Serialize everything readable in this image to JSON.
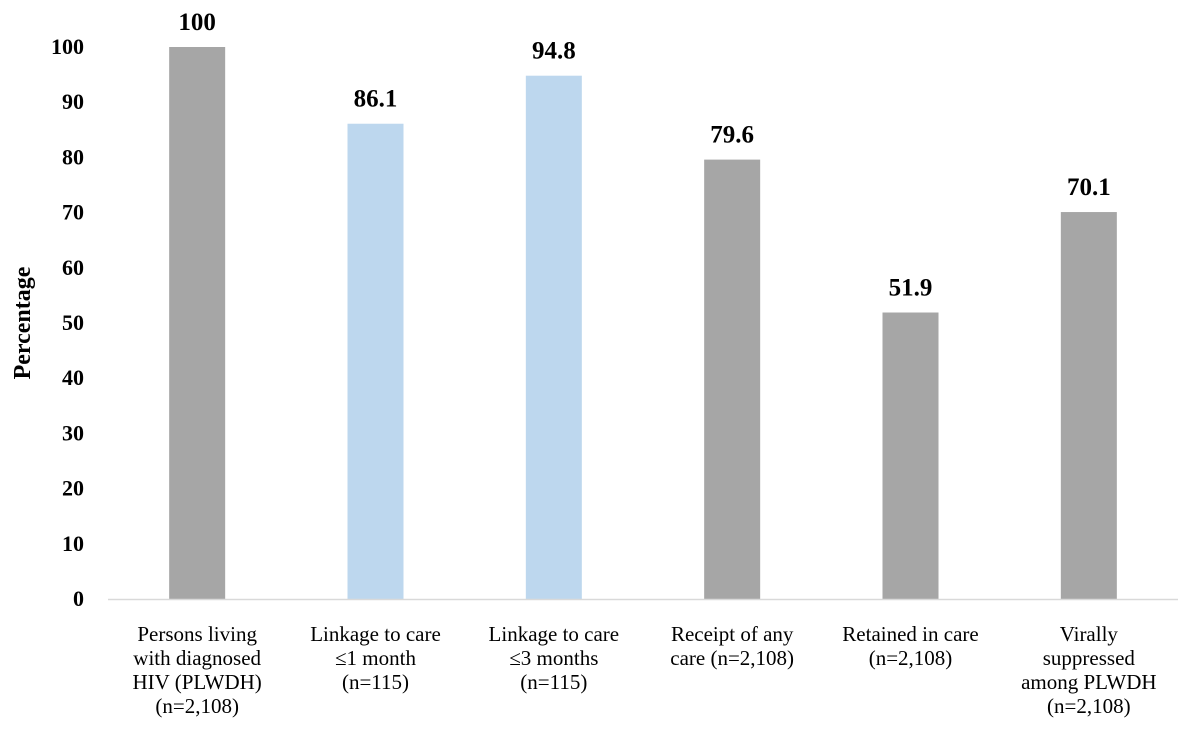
{
  "chart_data": {
    "type": "bar",
    "ylabel": "Percentage",
    "ylim": [
      0,
      100
    ],
    "yticks": [
      0,
      10,
      20,
      30,
      40,
      50,
      60,
      70,
      80,
      90,
      100
    ],
    "grid": false,
    "legend": "none",
    "categories": [
      {
        "lines": [
          "Persons living",
          "with diagnosed",
          "HIV (PLWDH)",
          "(n=2,108)"
        ],
        "value": 100,
        "label": "100",
        "color": "#a6a6a6"
      },
      {
        "lines": [
          "Linkage to care",
          "≤1 month",
          "(n=115)"
        ],
        "value": 86.1,
        "label": "86.1",
        "color": "#bdd7ee"
      },
      {
        "lines": [
          "Linkage to care",
          "≤3 months",
          "(n=115)"
        ],
        "value": 94.8,
        "label": "94.8",
        "color": "#bdd7ee"
      },
      {
        "lines": [
          "Receipt of any",
          "care (n=2,108)"
        ],
        "value": 79.6,
        "label": "79.6",
        "color": "#a6a6a6"
      },
      {
        "lines": [
          "Retained in care",
          "(n=2,108)"
        ],
        "value": 51.9,
        "label": "51.9",
        "color": "#a6a6a6"
      },
      {
        "lines": [
          "Virally",
          "suppressed",
          "among PLWDH",
          "(n=2,108)"
        ],
        "value": 70.1,
        "label": "70.1",
        "color": "#a6a6a6"
      }
    ]
  }
}
